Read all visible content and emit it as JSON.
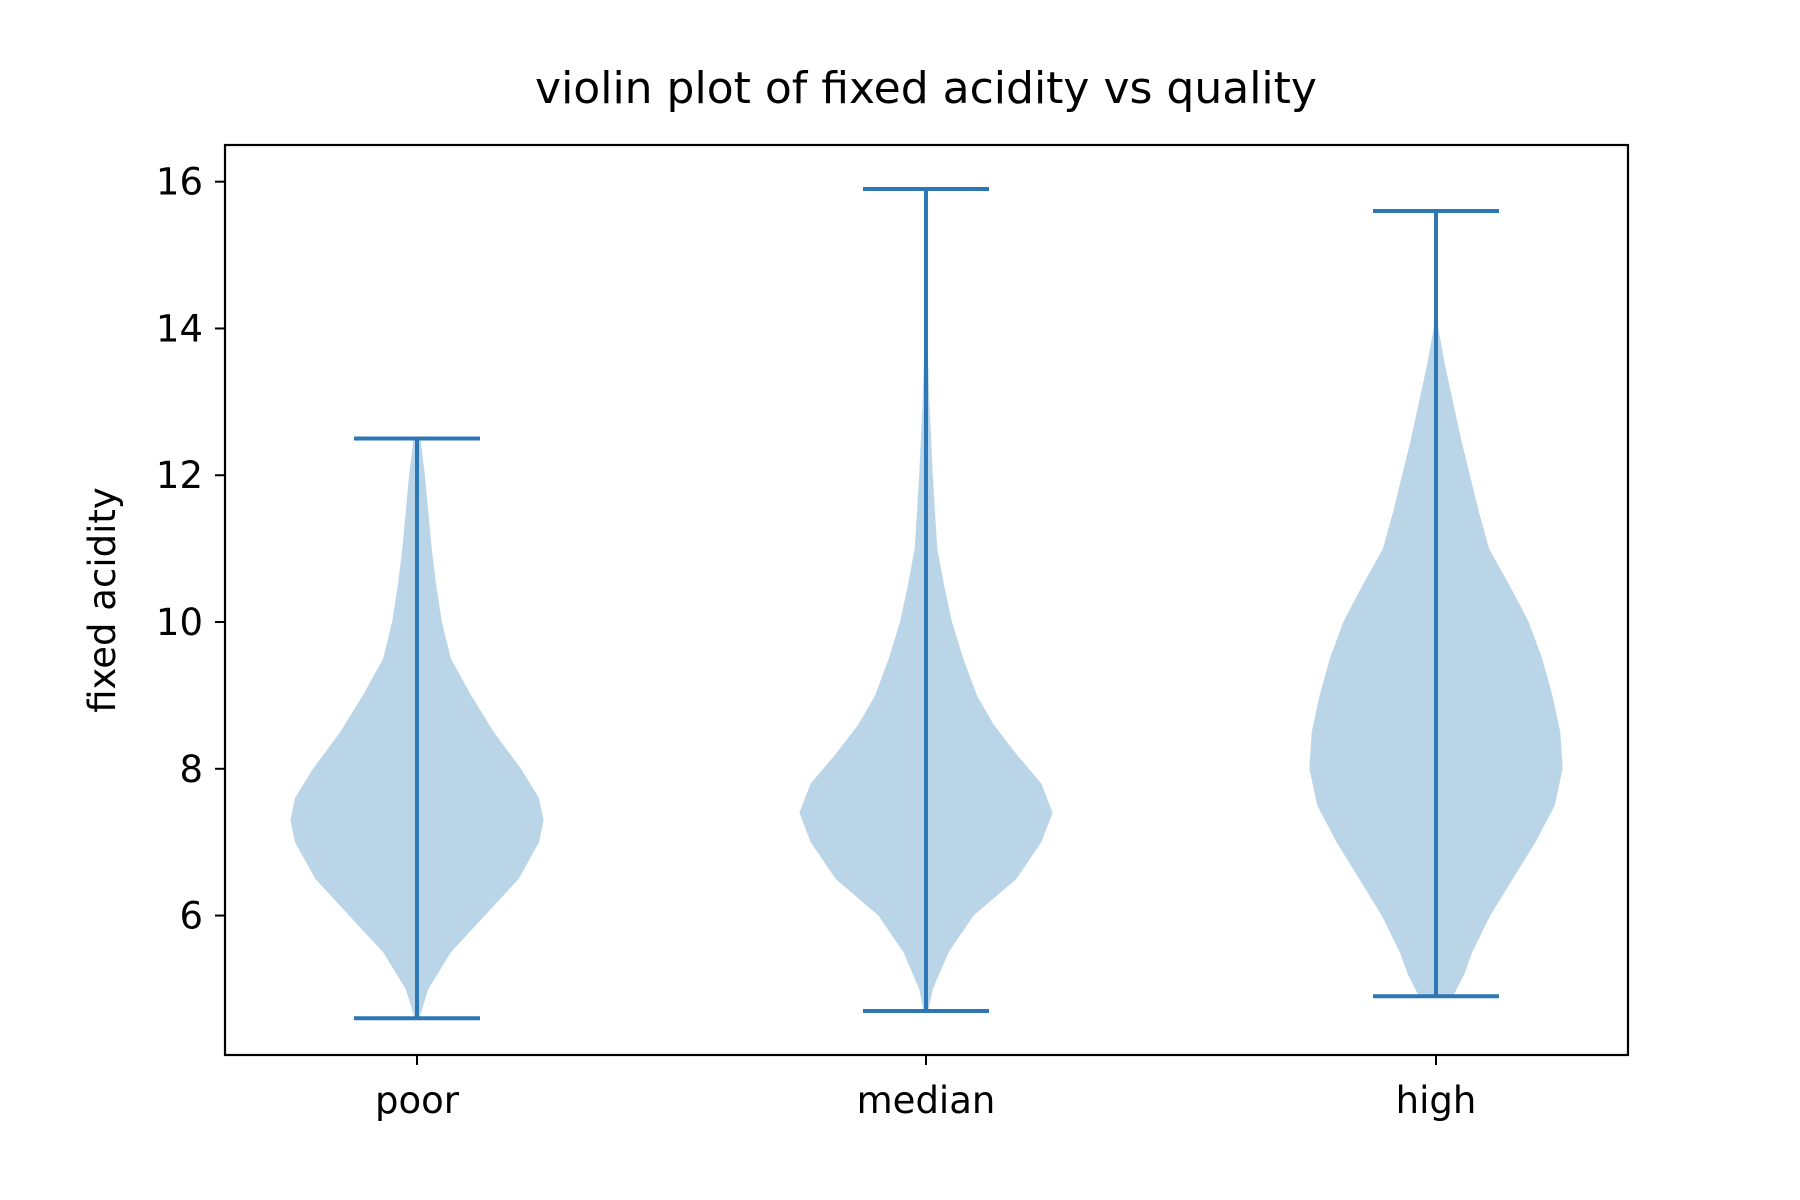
{
  "chart_data": {
    "type": "violin",
    "title": "violin plot of fixed acidity vs quality",
    "xlabel": "",
    "ylabel": "fixed acidity",
    "ylim": [
      4.1,
      16.5
    ],
    "yticks": [
      6,
      8,
      10,
      12,
      14,
      16
    ],
    "categories": [
      "poor",
      "median",
      "high"
    ],
    "fill_color": "#bad5e8",
    "line_color": "#2c77b4",
    "violins": [
      {
        "category": "poor",
        "min": 4.6,
        "max": 12.5,
        "profile_y": [
          4.6,
          5.0,
          5.5,
          6.0,
          6.5,
          7.0,
          7.3,
          7.6,
          8.0,
          8.5,
          9.0,
          9.5,
          10.0,
          10.5,
          11.0,
          11.5,
          12.0,
          12.5
        ],
        "profile_w": [
          0.02,
          0.1,
          0.3,
          0.6,
          0.9,
          1.08,
          1.12,
          1.08,
          0.92,
          0.68,
          0.48,
          0.3,
          0.22,
          0.17,
          0.13,
          0.1,
          0.07,
          0.03
        ]
      },
      {
        "category": "median",
        "min": 4.7,
        "max": 15.9,
        "profile_y": [
          4.7,
          5.0,
          5.5,
          6.0,
          6.5,
          7.0,
          7.4,
          7.8,
          8.2,
          8.6,
          9.0,
          9.5,
          10.0,
          10.5,
          11.0,
          11.5,
          12.0,
          12.5,
          13.0,
          13.5,
          14.0,
          14.5,
          15.0,
          15.5,
          15.9
        ],
        "profile_w": [
          0.02,
          0.06,
          0.2,
          0.42,
          0.8,
          1.02,
          1.12,
          1.02,
          0.8,
          0.6,
          0.45,
          0.33,
          0.23,
          0.16,
          0.1,
          0.08,
          0.06,
          0.045,
          0.03,
          0.02,
          0.012,
          0.008,
          0.005,
          0.003,
          0.002
        ]
      },
      {
        "category": "high",
        "min": 4.9,
        "max": 15.6,
        "profile_y": [
          4.9,
          5.2,
          5.5,
          6.0,
          6.5,
          7.0,
          7.5,
          8.0,
          8.5,
          9.0,
          9.5,
          10.0,
          10.5,
          11.0,
          11.5,
          12.0,
          12.5,
          13.0,
          13.5,
          14.0,
          14.5,
          15.0,
          15.6
        ],
        "profile_w": [
          0.15,
          0.25,
          0.32,
          0.48,
          0.68,
          0.88,
          1.05,
          1.12,
          1.1,
          1.03,
          0.94,
          0.82,
          0.65,
          0.47,
          0.38,
          0.3,
          0.22,
          0.15,
          0.08,
          0.02,
          0.005,
          0.003,
          0.002
        ]
      }
    ]
  }
}
